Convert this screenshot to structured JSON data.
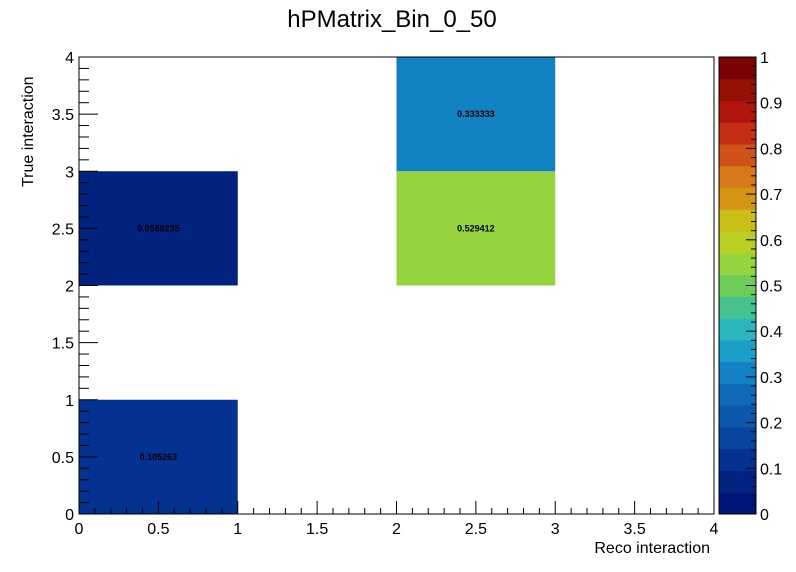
{
  "chart_data": {
    "type": "heatmap",
    "title": "hPMatrix_Bin_0_50",
    "xlabel": "Reco interaction",
    "ylabel": "True interaction",
    "xlim": [
      0,
      4
    ],
    "ylim": [
      0,
      4
    ],
    "zlim": [
      0,
      1
    ],
    "x_ticks": [
      "0",
      "0.5",
      "1",
      "1.5",
      "2",
      "2.5",
      "3",
      "3.5",
      "4"
    ],
    "y_ticks": [
      "0",
      "0.5",
      "1",
      "1.5",
      "2",
      "2.5",
      "3",
      "3.5",
      "4"
    ],
    "z_ticks": [
      "0",
      "0.1",
      "0.2",
      "0.3",
      "0.4",
      "0.5",
      "0.6",
      "0.7",
      "0.8",
      "0.9",
      "1"
    ],
    "cells": [
      {
        "x0": 0,
        "x1": 1,
        "y0": 0,
        "y1": 1,
        "value": 0.105263,
        "label": "0.105263"
      },
      {
        "x0": 0,
        "x1": 1,
        "y0": 2,
        "y1": 3,
        "value": 0.0588235,
        "label": "0.0588235"
      },
      {
        "x0": 2,
        "x1": 3,
        "y0": 2,
        "y1": 3,
        "value": 0.529412,
        "label": "0.529412"
      },
      {
        "x0": 2,
        "x1": 3,
        "y0": 3,
        "y1": 4,
        "value": 0.333333,
        "label": "0.333333"
      }
    ],
    "palette": [
      "#00157a",
      "#022280",
      "#053290",
      "#07449d",
      "#0b57ac",
      "#0f6ab8",
      "#1382c4",
      "#1b9ec8",
      "#2bb5bd",
      "#46c28e",
      "#6dcd5a",
      "#95d43e",
      "#b9cf22",
      "#cbbe16",
      "#d49414",
      "#d7781a",
      "#d0521a",
      "#c42e14",
      "#b0140c",
      "#951006",
      "#7a0403"
    ],
    "grid": false,
    "legend": "colorbar-right"
  }
}
